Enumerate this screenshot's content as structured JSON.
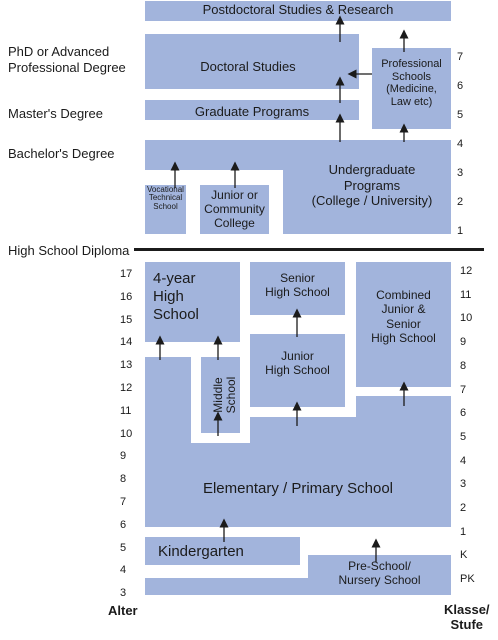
{
  "blocks": {
    "postdoc": "Postdoctoral Studies & Research",
    "doctoral": "Doctoral Studies",
    "professional": [
      "Professional",
      "Schools",
      "(Medicine,",
      "Law etc)"
    ],
    "graduate": "Graduate Programs",
    "undergraduate": [
      "Undergraduate",
      "Programs",
      "(College / University)"
    ],
    "vocational": [
      "Vocational",
      "Technical",
      "School"
    ],
    "junior_college": [
      "Junior or",
      "Community",
      "College"
    ],
    "four_year_hs": [
      "4-year",
      "High",
      "School"
    ],
    "senior_hs": [
      "Senior",
      "High School"
    ],
    "combined_hs": [
      "Combined",
      "Junior &",
      "Senior",
      "High School"
    ],
    "junior_hs": [
      "Junior",
      "High School"
    ],
    "middle_school": [
      "Middle",
      "School"
    ],
    "elementary": "Elementary / Primary School",
    "kindergarten": "Kindergarten",
    "preschool": [
      "Pre-School/",
      "Nursery School"
    ]
  },
  "degrees": {
    "phd": [
      "PhD or Advanced",
      "Professional Degree"
    ],
    "masters": "Master's Degree",
    "bachelors": "Bachelor's Degree",
    "high_school": "High School Diploma"
  },
  "upper_years": [
    "7",
    "6",
    "5",
    "4",
    "3",
    "2",
    "1"
  ],
  "ages": [
    "17",
    "16",
    "15",
    "14",
    "13",
    "12",
    "11",
    "10",
    "9",
    "8",
    "7",
    "6",
    "5",
    "4",
    "3"
  ],
  "grades": [
    "12",
    "11",
    "10",
    "9",
    "8",
    "7",
    "6",
    "5",
    "4",
    "3",
    "2",
    "1",
    "K",
    "PK"
  ],
  "footer": {
    "age_label": "Alter",
    "grade_label": [
      "Klasse/",
      "Stufe"
    ]
  },
  "colors": {
    "block_fill": "#a2b4dc",
    "text": "#1b1b1b",
    "divider": "#1b1b1b"
  }
}
